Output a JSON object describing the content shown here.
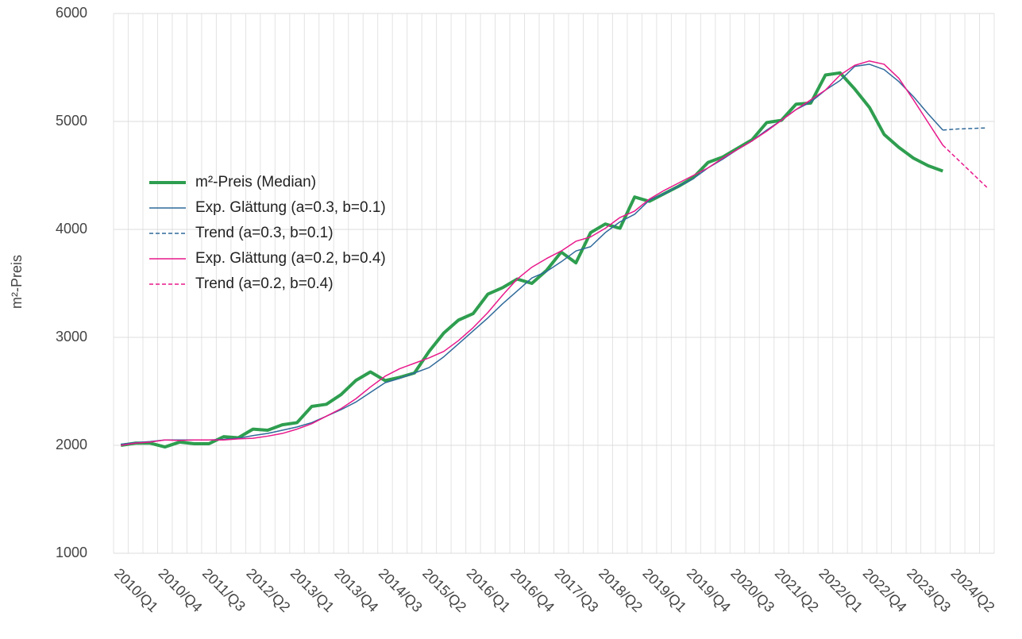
{
  "chart_data": {
    "type": "line",
    "ylabel": "m²-Preis",
    "categories": [
      "2010/Q1",
      null,
      null,
      "2010/Q4",
      null,
      null,
      "2011/Q3",
      null,
      null,
      "2012/Q2",
      null,
      null,
      "2013/Q1",
      null,
      null,
      "2013/Q4",
      null,
      null,
      "2014/Q3",
      null,
      null,
      "2015/Q2",
      null,
      null,
      "2016/Q1",
      null,
      null,
      "2016/Q4",
      null,
      null,
      "2017/Q3",
      null,
      null,
      "2018/Q2",
      null,
      null,
      "2019/Q1",
      null,
      null,
      "2019/Q4",
      null,
      null,
      "2020/Q3",
      null,
      null,
      "2021/Q2",
      null,
      null,
      "2022/Q1",
      null,
      null,
      "2022/Q4",
      null,
      null,
      "2023/Q3",
      null,
      null,
      "2024/Q2",
      null,
      null
    ],
    "series": [
      {
        "name": "m²-Preis (Median)",
        "color": "#2e9e4f",
        "width": 4,
        "dashed": false,
        "values": [
          2000,
          2020,
          2020,
          1985,
          2030,
          2015,
          2015,
          2080,
          2070,
          2150,
          2140,
          2190,
          2210,
          2360,
          2380,
          2470,
          2600,
          2680,
          2600,
          2630,
          2670,
          2870,
          3040,
          3160,
          3220,
          3400,
          3460,
          3540,
          3500,
          3620,
          3790,
          3690,
          3970,
          4050,
          4010,
          4300,
          4260,
          4330,
          4400,
          4480,
          4620,
          4670,
          4750,
          4830,
          4990,
          5010,
          5160,
          5170,
          5430,
          5450,
          5300,
          5130,
          4880,
          4760,
          4660,
          4590,
          4540,
          null,
          null,
          null
        ]
      },
      {
        "name": "Exp. Glättung (a=0.3, b=0.1)",
        "color": "#2f6a9a",
        "width": 1.5,
        "dashed": false,
        "values": [
          2010,
          2025,
          2035,
          2050,
          2050,
          2050,
          2050,
          2055,
          2065,
          2090,
          2110,
          2140,
          2170,
          2210,
          2270,
          2330,
          2400,
          2490,
          2580,
          2620,
          2670,
          2720,
          2820,
          2940,
          3060,
          3180,
          3310,
          3430,
          3550,
          3610,
          3700,
          3800,
          3840,
          3970,
          4070,
          4140,
          4270,
          4330,
          4400,
          4470,
          4570,
          4650,
          4740,
          4820,
          4920,
          5010,
          5110,
          5180,
          5290,
          5380,
          5510,
          5530,
          5480,
          5370,
          5230,
          5070,
          4920,
          null,
          null,
          null
        ]
      },
      {
        "name": "Trend (a=0.3, b=0.1)",
        "color": "#2f6a9a",
        "width": 1.5,
        "dashed": true,
        "values": [
          null,
          null,
          null,
          null,
          null,
          null,
          null,
          null,
          null,
          null,
          null,
          null,
          null,
          null,
          null,
          null,
          null,
          null,
          null,
          null,
          null,
          null,
          null,
          null,
          null,
          null,
          null,
          null,
          null,
          null,
          null,
          null,
          null,
          null,
          null,
          null,
          null,
          null,
          null,
          null,
          null,
          null,
          null,
          null,
          null,
          null,
          null,
          null,
          null,
          null,
          null,
          null,
          null,
          null,
          null,
          null,
          4920,
          4930,
          4935,
          4940
        ]
      },
      {
        "name": "Exp. Glättung (a=0.2, b=0.4)",
        "color": "#e8198b",
        "width": 1.5,
        "dashed": false,
        "values": [
          2000,
          2020,
          2030,
          2050,
          2045,
          2050,
          2050,
          2050,
          2060,
          2065,
          2085,
          2110,
          2150,
          2200,
          2270,
          2340,
          2430,
          2540,
          2640,
          2710,
          2760,
          2810,
          2870,
          2970,
          3090,
          3230,
          3390,
          3540,
          3650,
          3730,
          3800,
          3890,
          3930,
          4010,
          4110,
          4170,
          4280,
          4360,
          4430,
          4500,
          4570,
          4660,
          4740,
          4820,
          4910,
          5010,
          5110,
          5200,
          5290,
          5430,
          5520,
          5560,
          5530,
          5400,
          5200,
          4990,
          4780,
          null,
          null,
          null
        ]
      },
      {
        "name": "Trend (a=0.2, b=0.4)",
        "color": "#e8198b",
        "width": 1.5,
        "dashed": true,
        "values": [
          null,
          null,
          null,
          null,
          null,
          null,
          null,
          null,
          null,
          null,
          null,
          null,
          null,
          null,
          null,
          null,
          null,
          null,
          null,
          null,
          null,
          null,
          null,
          null,
          null,
          null,
          null,
          null,
          null,
          null,
          null,
          null,
          null,
          null,
          null,
          null,
          null,
          null,
          null,
          null,
          null,
          null,
          null,
          null,
          null,
          null,
          null,
          null,
          null,
          null,
          null,
          null,
          null,
          null,
          null,
          null,
          4780,
          4650,
          4520,
          4390
        ]
      }
    ],
    "ylim": [
      1000,
      6000
    ],
    "yticks": [
      1000,
      2000,
      3000,
      4000,
      5000,
      6000
    ],
    "grid": true,
    "legend": "left"
  }
}
